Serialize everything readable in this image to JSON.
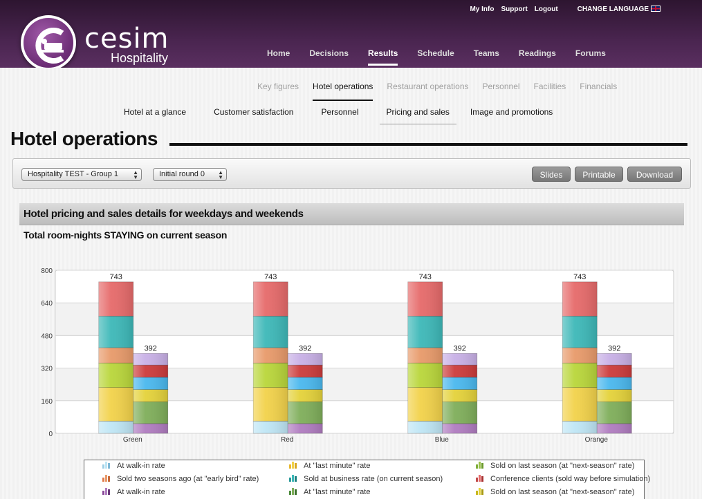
{
  "header": {
    "top_links": [
      "My Info",
      "Support",
      "Logout"
    ],
    "change_language": "CHANGE LANGUAGE",
    "brand_name": "cesim",
    "brand_sub": "Hospitality",
    "nav": [
      "Home",
      "Decisions",
      "Results",
      "Schedule",
      "Teams",
      "Readings",
      "Forums"
    ],
    "nav_active": "Results"
  },
  "subnav1": {
    "items": [
      "Key figures",
      "Hotel operations",
      "Restaurant operations",
      "Personnel",
      "Facilities",
      "Financials"
    ],
    "active": "Hotel operations"
  },
  "subnav2": {
    "items": [
      "Hotel at a glance",
      "Customer satisfaction",
      "Personnel",
      "Pricing and sales",
      "Image and promotions"
    ],
    "active": "Pricing and sales"
  },
  "page_title": "Hotel operations",
  "toolbar": {
    "group_select": "Hospitality TEST - Group 1",
    "round_select": "Initial round 0",
    "slides": "Slides",
    "printable": "Printable",
    "download": "Download"
  },
  "section_title": "Hotel pricing and sales details for weekdays and weekends",
  "chart_title": "Total room-nights STAYING on current season",
  "colors": {
    "header": "#4a2550",
    "light_blue": "#bfe6f5",
    "yellow": "#f2d24a",
    "lime": "#b9d63a",
    "orange": "#e89a6a",
    "teal": "#3db8b8",
    "red": "#e66a6a",
    "purple": "#b07cc0",
    "green": "#7fae5a",
    "yellow2": "#e4d23a",
    "sky": "#4ab8ee",
    "dark_red": "#cc3b3b",
    "lavender": "#c8b0e6"
  },
  "chart_data": {
    "type": "bar",
    "stacked": true,
    "categories": [
      "Green",
      "Red",
      "Blue",
      "Orange"
    ],
    "ylim": [
      0,
      800
    ],
    "yticks": [
      0,
      160,
      320,
      480,
      640,
      800
    ],
    "grid": true,
    "bars": [
      {
        "stack": "weekdays",
        "total_label": "743",
        "segments": [
          {
            "name": "At walk-in rate",
            "color": "#bfe6f5",
            "value": 60
          },
          {
            "name": "At \"last minute\" rate",
            "color": "#f2d24a",
            "value": 165
          },
          {
            "name": "Sold on last season (at \"next-season\" rate)",
            "color": "#b9d63a",
            "value": 120
          },
          {
            "name": "Sold two seasons ago (at \"early bird\" rate)",
            "color": "#e89a6a",
            "value": 75
          },
          {
            "name": "Sold at business rate (on current season)",
            "color": "#3db8b8",
            "value": 155
          },
          {
            "name": "Conference clients (sold way before simulation)",
            "color": "#e66a6a",
            "value": 168
          }
        ]
      },
      {
        "stack": "weekends",
        "total_label": "392",
        "segments": [
          {
            "name": "At walk-in rate",
            "color": "#b07cc0",
            "value": 48
          },
          {
            "name": "At \"last minute\" rate",
            "color": "#7fae5a",
            "value": 107
          },
          {
            "name": "Sold on last season (at \"next-season\" rate)",
            "color": "#e4d23a",
            "value": 60
          },
          {
            "name": "Sold two seasons ago (at \"early bird\" rate)",
            "color": "#4ab8ee",
            "value": 60
          },
          {
            "name": "Sold at business rate (on current season)",
            "color": "#cc3b3b",
            "value": 60
          },
          {
            "name": "Conference clients (sold way before simulation)",
            "color": "#c8b0e6",
            "value": 57
          }
        ]
      }
    ]
  },
  "legend": [
    {
      "label": "At walk-in rate",
      "colors": [
        "#9ecfe6",
        "#bfe6f5",
        "#7fb8d6"
      ]
    },
    {
      "label": "At \"last minute\" rate",
      "colors": [
        "#e8b830",
        "#f2d24a",
        "#d8a820"
      ]
    },
    {
      "label": "Sold on last season (at \"next-season\" rate)",
      "colors": [
        "#7fae3a",
        "#9bc24a",
        "#6a9a2a"
      ]
    },
    {
      "label": "Sold two seasons ago (at \"early bird\" rate)",
      "colors": [
        "#e07a4a",
        "#e89a6a",
        "#c86a3a"
      ]
    },
    {
      "label": "Sold at business rate (on current season)",
      "colors": [
        "#2a9a9a",
        "#3db8b8",
        "#1a8080"
      ]
    },
    {
      "label": "Conference clients (sold way before simulation)",
      "colors": [
        "#c04a4a",
        "#e66a6a",
        "#a83030"
      ]
    },
    {
      "label": "At walk-in rate",
      "colors": [
        "#8a4a9a",
        "#b07cc0",
        "#6a3a7a"
      ]
    },
    {
      "label": "At \"last minute\" rate",
      "colors": [
        "#4a8a3a",
        "#7fae5a",
        "#3a702a"
      ]
    },
    {
      "label": "Sold on last season (at \"next-season\" rate)",
      "colors": [
        "#c8b820",
        "#e4d23a",
        "#a89a10"
      ]
    }
  ]
}
